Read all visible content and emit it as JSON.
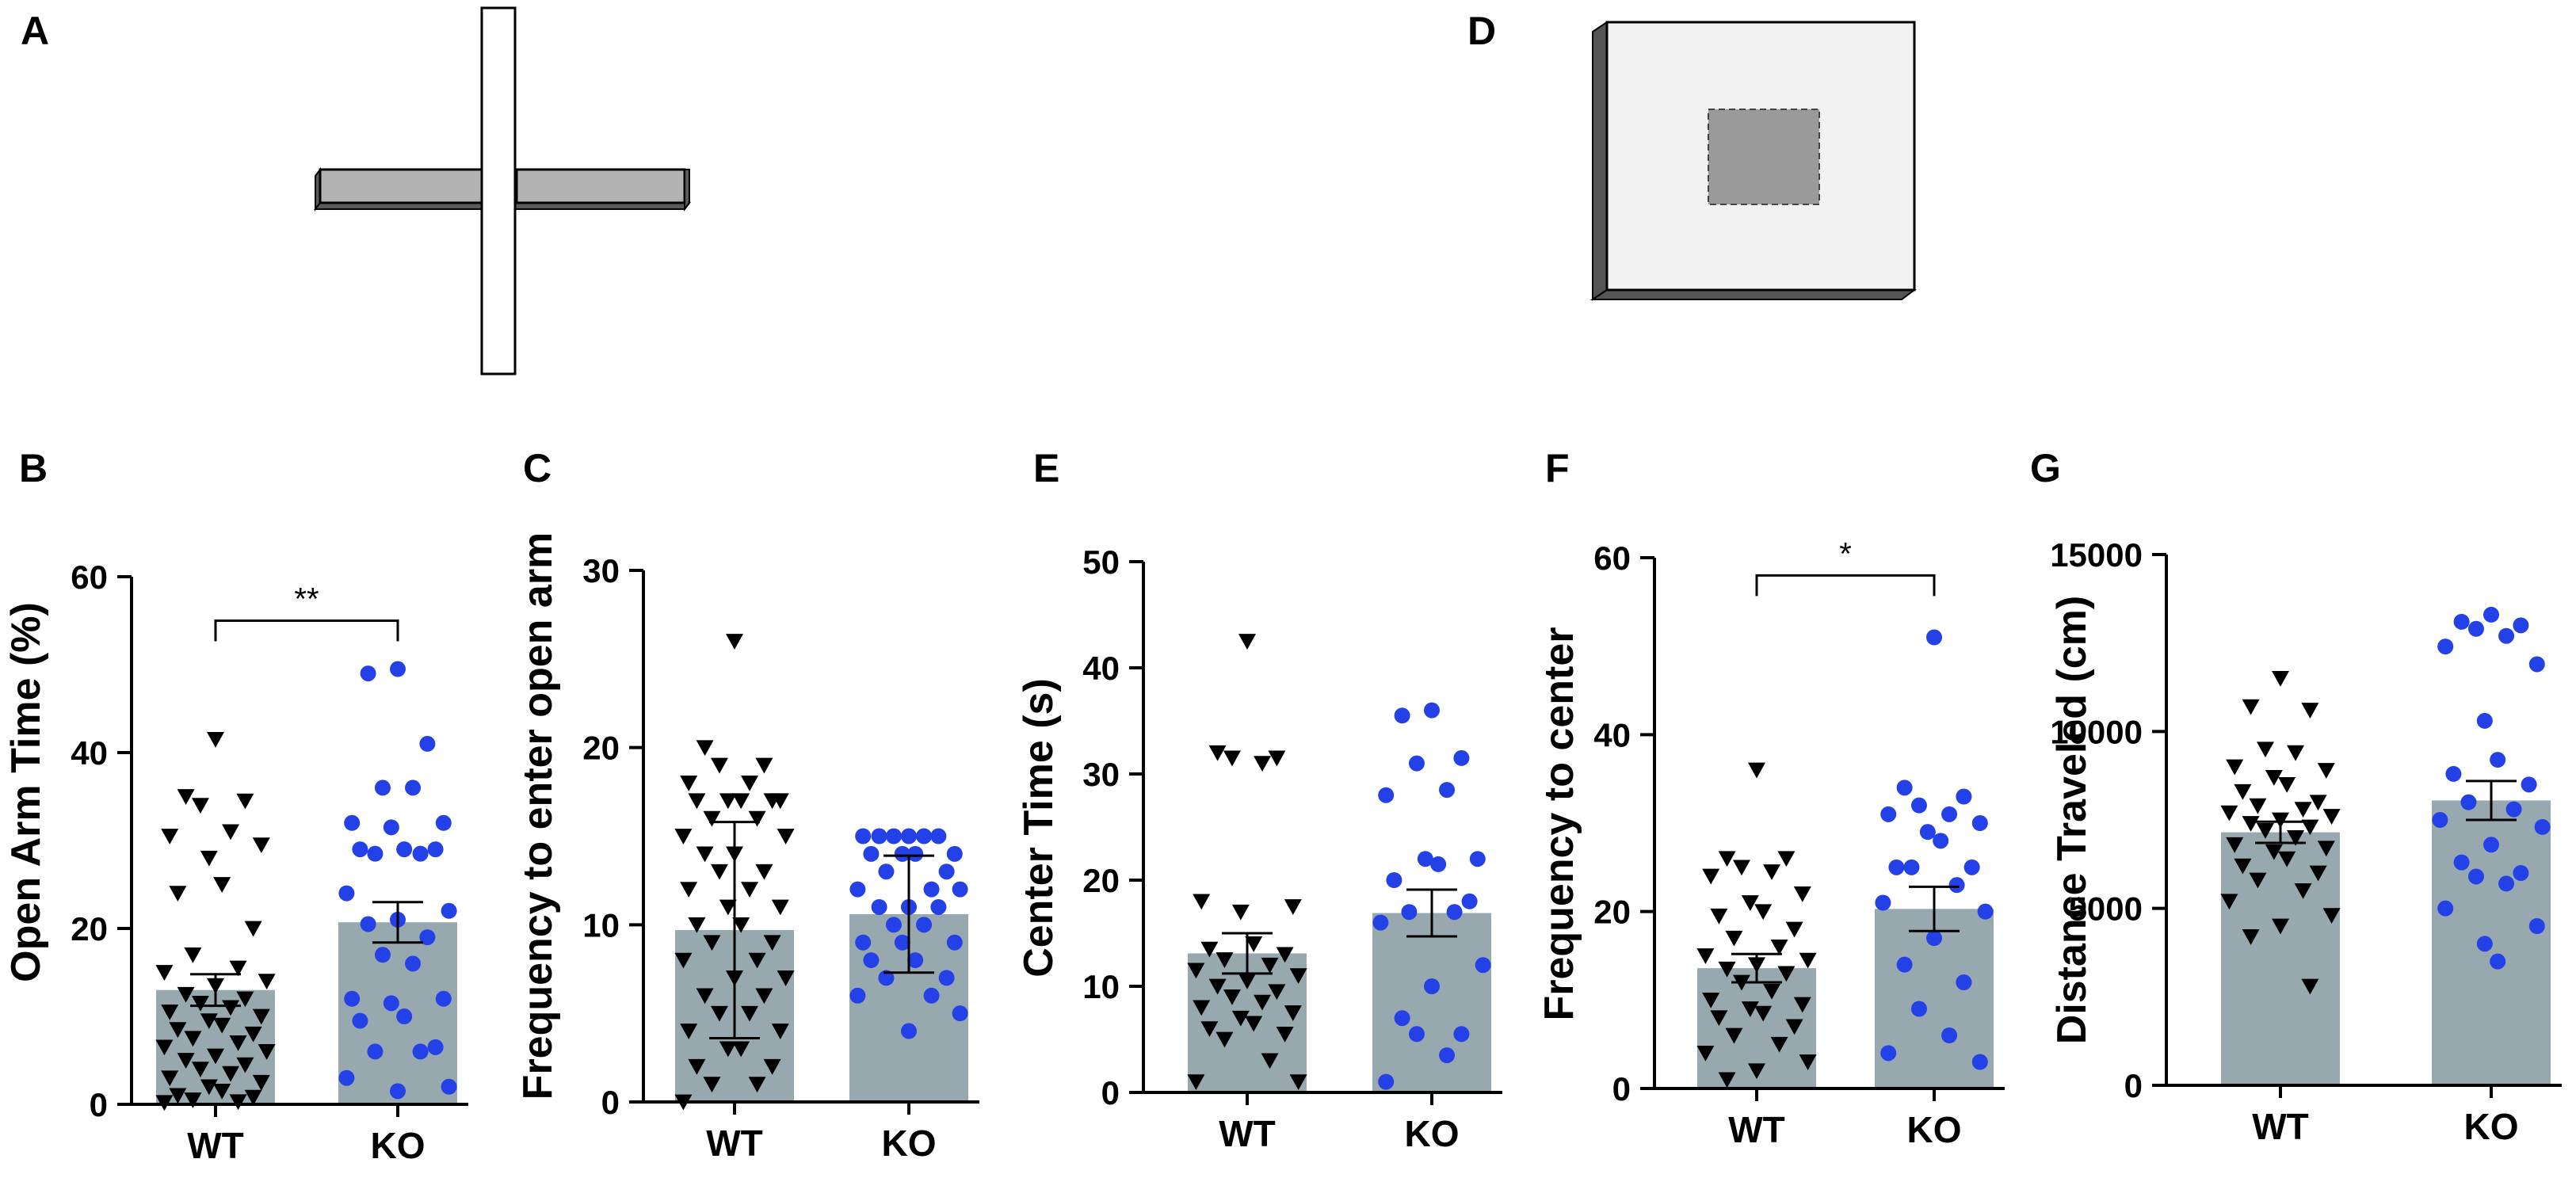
{
  "figure": {
    "panel_labels": {
      "A": "A",
      "D": "D"
    },
    "colors": {
      "bar": "#97a9ae",
      "wt": "#000000",
      "ko": "#2441e8",
      "arm_closed": "#b3b3b3",
      "arena": "#f2f2f2",
      "arena_center": "#9a9a9a",
      "arena_wall": "#555555"
    }
  },
  "chart_data": [
    {
      "id": "B",
      "panel": "B",
      "type": "bar",
      "title": "",
      "xlabel": "",
      "ylabel": "Open Arm Time (%)",
      "categories": [
        "WT",
        "KO"
      ],
      "ylim": [
        0,
        60
      ],
      "yticks": [
        0,
        20,
        40,
        60
      ],
      "ytick_labels": [
        "0",
        "20",
        "40",
        "60"
      ],
      "values": [
        13.0,
        20.7
      ],
      "errors": [
        1.8,
        2.3
      ],
      "significance": {
        "from": 0,
        "to": 1,
        "label": "**",
        "y": 55
      },
      "points": [
        [
          41.5,
          35.0,
          34.5,
          34.0,
          31.0,
          30.5,
          29.5,
          28.0,
          25.0,
          24.0,
          20.0,
          17.0,
          15.5,
          15.0,
          14.0,
          13.5,
          12.5,
          12.0,
          11.5,
          11.0,
          10.5,
          10.0,
          9.5,
          9.0,
          8.5,
          8.0,
          7.5,
          7.0,
          6.5,
          6.0,
          5.5,
          5.0,
          4.5,
          4.0,
          3.5,
          3.0,
          2.5,
          2.0,
          1.5,
          1.0,
          0.8,
          0.5,
          0.3,
          0.2
        ],
        [
          49.5,
          49.0,
          41.0,
          36.0,
          36.0,
          32.0,
          32.0,
          31.5,
          29.0,
          29.0,
          29.0,
          28.5,
          28.5,
          24.0,
          22.0,
          21.0,
          20.5,
          19.0,
          17.0,
          16.0,
          12.0,
          12.0,
          11.5,
          10.0,
          9.5,
          6.5,
          6.0,
          6.0,
          3.0,
          2.0,
          1.5
        ]
      ]
    },
    {
      "id": "C",
      "panel": "C",
      "type": "bar",
      "title": "",
      "xlabel": "",
      "ylabel": "Frequency to enter open arm",
      "categories": [
        "WT",
        "KO"
      ],
      "ylim": [
        0,
        30
      ],
      "yticks": [
        0,
        10,
        20,
        30
      ],
      "ytick_labels": [
        "0",
        "10",
        "20",
        "30"
      ],
      "values": [
        9.7,
        10.6
      ],
      "errors": [
        6.1,
        3.3
      ],
      "points": [
        [
          26.0,
          20.0,
          19.0,
          19.0,
          18.0,
          18.0,
          17.0,
          17.0,
          17.0,
          17.0,
          17.0,
          16.0,
          16.0,
          15.0,
          15.0,
          14.0,
          14.0,
          13.0,
          13.0,
          12.0,
          12.0,
          11.0,
          11.0,
          10.0,
          10.0,
          9.0,
          9.0,
          8.0,
          8.0,
          7.0,
          7.0,
          6.0,
          6.0,
          5.0,
          5.0,
          4.0,
          4.0,
          3.0,
          3.0,
          2.0,
          2.0,
          1.0,
          1.0,
          0.0
        ],
        [
          15.0,
          15.0,
          15.0,
          15.0,
          15.0,
          15.0,
          14.0,
          14.0,
          14.0,
          14.0,
          13.0,
          13.0,
          12.0,
          12.0,
          12.0,
          11.0,
          11.0,
          11.0,
          10.0,
          10.0,
          9.0,
          9.0,
          9.0,
          8.0,
          8.0,
          7.0,
          7.0,
          6.0,
          6.0,
          5.0,
          4.0
        ]
      ]
    },
    {
      "id": "E",
      "panel": "E",
      "type": "bar",
      "title": "",
      "xlabel": "",
      "ylabel": "Center Time (s)",
      "categories": [
        "WT",
        "KO"
      ],
      "ylim": [
        0,
        50
      ],
      "yticks": [
        0,
        10,
        20,
        30,
        40,
        50
      ],
      "ytick_labels": [
        "0",
        "10",
        "20",
        "30",
        "40",
        "50"
      ],
      "values": [
        13.1,
        16.9
      ],
      "errors": [
        1.9,
        2.2
      ],
      "points": [
        [
          42.5,
          32.0,
          31.5,
          31.5,
          31.0,
          18.0,
          17.5,
          17.0,
          14.0,
          13.5,
          13.0,
          12.5,
          12.0,
          11.5,
          11.0,
          10.5,
          10.0,
          9.5,
          9.0,
          8.5,
          8.0,
          7.5,
          7.0,
          6.5,
          6.0,
          5.5,
          5.0,
          3.0,
          1.0,
          1.0
        ],
        [
          36.0,
          35.5,
          31.5,
          31.0,
          28.5,
          28.0,
          22.0,
          22.0,
          21.5,
          20.0,
          18.0,
          17.0,
          17.0,
          16.0,
          12.0,
          10.0,
          7.0,
          5.5,
          5.5,
          3.5,
          1.0
        ]
      ]
    },
    {
      "id": "F",
      "panel": "F",
      "type": "bar",
      "title": "",
      "xlabel": "",
      "ylabel": "Frequency to center",
      "categories": [
        "WT",
        "KO"
      ],
      "ylim": [
        0,
        60
      ],
      "yticks": [
        0,
        20,
        40,
        60
      ],
      "ytick_labels": [
        "0",
        "20",
        "40",
        "60"
      ],
      "values": [
        13.6,
        20.3
      ],
      "errors": [
        1.6,
        2.5
      ],
      "significance": {
        "from": 0,
        "to": 1,
        "label": "*",
        "y": 58
      },
      "points": [
        [
          36.0,
          26.0,
          26.0,
          25.0,
          24.5,
          24.0,
          22.0,
          21.0,
          20.0,
          19.5,
          18.0,
          17.0,
          16.0,
          15.0,
          14.5,
          14.0,
          13.5,
          13.0,
          12.0,
          11.0,
          10.0,
          9.5,
          9.0,
          8.5,
          8.0,
          7.0,
          6.0,
          5.0,
          4.0,
          3.0,
          2.0,
          1.0
        ],
        [
          51.0,
          34.0,
          33.0,
          32.0,
          31.0,
          31.0,
          30.0,
          29.0,
          28.0,
          25.0,
          25.0,
          25.0,
          23.0,
          21.0,
          20.0,
          17.0,
          14.0,
          12.0,
          9.0,
          6.0,
          4.0,
          3.0
        ]
      ]
    },
    {
      "id": "G",
      "panel": "G",
      "type": "bar",
      "title": "",
      "xlabel": "",
      "ylabel": "Distance Traveled (cm)",
      "categories": [
        "WT",
        "KO"
      ],
      "ylim": [
        0,
        15000
      ],
      "yticks": [
        0,
        5000,
        10000,
        15000
      ],
      "ytick_labels": [
        "0",
        "5000",
        "10000",
        "15000"
      ],
      "values": [
        7150,
        8050
      ],
      "errors": [
        300,
        550
      ],
      "points": [
        [
          11500,
          10700,
          10600,
          9500,
          9400,
          9000,
          8900,
          8700,
          8500,
          8300,
          8000,
          7900,
          7800,
          7700,
          7600,
          7500,
          7400,
          7300,
          7200,
          7000,
          6800,
          6700,
          6600,
          6400,
          6200,
          6000,
          5800,
          5500,
          5200,
          4800,
          4500,
          4200,
          2800
        ],
        [
          13300,
          13100,
          13000,
          12900,
          12700,
          12400,
          11900,
          10300,
          9200,
          8800,
          8500,
          8000,
          7800,
          7500,
          7300,
          6800,
          6300,
          6000,
          5900,
          5700,
          5000,
          4500,
          4000,
          3500
        ]
      ]
    }
  ]
}
